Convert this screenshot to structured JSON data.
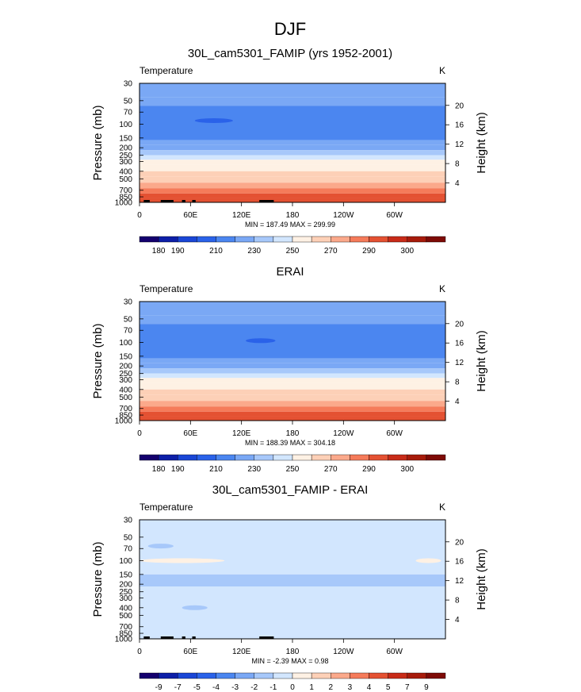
{
  "page_title": "DJF",
  "chart_data": [
    {
      "type": "heatmap",
      "title": "30L_cam5301_FAMIP (yrs 1952-2001)",
      "left_label": "Temperature",
      "units": "K",
      "ylabel": "Pressure (mb)",
      "ylabel_right": "Height (km)",
      "minmax": "MIN = 187.49  MAX = 299.99",
      "pressure_ticks": [
        "30",
        "50",
        "70",
        "100",
        "150",
        "200",
        "250",
        "300",
        "400",
        "500",
        "700",
        "850",
        "1000"
      ],
      "height_ticks": [
        "20",
        "16",
        "12",
        "8",
        "4"
      ],
      "lon_ticks": [
        "0",
        "60E",
        "120E",
        "180",
        "120W",
        "60W"
      ],
      "colorbar_labels": [
        "180",
        "190",
        "210",
        "230",
        "250",
        "270",
        "290",
        "300"
      ],
      "bands": [
        {
          "p_top": 30,
          "p_bot": 45,
          "value": 215
        },
        {
          "p_top": 45,
          "p_bot": 58,
          "value": 212
        },
        {
          "p_top": 58,
          "p_bot": 160,
          "value": 205
        },
        {
          "p_top": 160,
          "p_bot": 185,
          "value": 210
        },
        {
          "p_top": 185,
          "p_bot": 215,
          "value": 215
        },
        {
          "p_top": 215,
          "p_bot": 250,
          "value": 222
        },
        {
          "p_top": 250,
          "p_bot": 285,
          "value": 230
        },
        {
          "p_top": 285,
          "p_bot": 330,
          "value": 240
        },
        {
          "p_top": 330,
          "p_bot": 400,
          "value": 247
        },
        {
          "p_top": 400,
          "p_bot": 470,
          "value": 252
        },
        {
          "p_top": 470,
          "p_bot": 560,
          "value": 258
        },
        {
          "p_top": 560,
          "p_bot": 660,
          "value": 265
        },
        {
          "p_top": 660,
          "p_bot": 770,
          "value": 272
        },
        {
          "p_top": 770,
          "p_bot": 880,
          "value": 280
        },
        {
          "p_top": 880,
          "p_bot": 1000,
          "value": 288
        }
      ],
      "features": [
        {
          "lon_start": 65,
          "lon_end": 110,
          "p": 90,
          "value": 190
        }
      ],
      "topo": [
        [
          5,
          12
        ],
        [
          25,
          40
        ],
        [
          50,
          54
        ],
        [
          62,
          66
        ],
        [
          141,
          158
        ]
      ]
    },
    {
      "type": "heatmap",
      "title": "ERAI",
      "left_label": "Temperature",
      "units": "K",
      "ylabel": "Pressure (mb)",
      "ylabel_right": "Height (km)",
      "minmax": "MIN = 188.39  MAX = 304.18",
      "pressure_ticks": [
        "30",
        "50",
        "70",
        "100",
        "150",
        "200",
        "250",
        "300",
        "400",
        "500",
        "700",
        "850",
        "1000"
      ],
      "height_ticks": [
        "20",
        "16",
        "12",
        "8",
        "4"
      ],
      "lon_ticks": [
        "0",
        "60E",
        "120E",
        "180",
        "120W",
        "60W"
      ],
      "colorbar_labels": [
        "180",
        "190",
        "210",
        "230",
        "250",
        "270",
        "290",
        "300"
      ],
      "bands": [
        {
          "p_top": 30,
          "p_bot": 45,
          "value": 215
        },
        {
          "p_top": 45,
          "p_bot": 58,
          "value": 212
        },
        {
          "p_top": 58,
          "p_bot": 160,
          "value": 205
        },
        {
          "p_top": 160,
          "p_bot": 185,
          "value": 210
        },
        {
          "p_top": 185,
          "p_bot": 215,
          "value": 215
        },
        {
          "p_top": 215,
          "p_bot": 250,
          "value": 222
        },
        {
          "p_top": 250,
          "p_bot": 285,
          "value": 230
        },
        {
          "p_top": 285,
          "p_bot": 330,
          "value": 240
        },
        {
          "p_top": 330,
          "p_bot": 400,
          "value": 247
        },
        {
          "p_top": 400,
          "p_bot": 470,
          "value": 252
        },
        {
          "p_top": 470,
          "p_bot": 560,
          "value": 258
        },
        {
          "p_top": 560,
          "p_bot": 660,
          "value": 265
        },
        {
          "p_top": 660,
          "p_bot": 770,
          "value": 272
        },
        {
          "p_top": 770,
          "p_bot": 880,
          "value": 280
        },
        {
          "p_top": 880,
          "p_bot": 1000,
          "value": 288
        }
      ],
      "features": [
        {
          "lon_start": 125,
          "lon_end": 160,
          "p": 95,
          "value": 190
        }
      ],
      "topo": []
    },
    {
      "type": "heatmap",
      "title": "30L_cam5301_FAMIP - ERAI",
      "left_label": "Temperature",
      "units": "K",
      "ylabel": "Pressure (mb)",
      "ylabel_right": "Height (km)",
      "minmax": "MIN =  -2.39  MAX =   0.98",
      "pressure_ticks": [
        "30",
        "50",
        "70",
        "100",
        "150",
        "200",
        "250",
        "300",
        "400",
        "500",
        "700",
        "850",
        "1000"
      ],
      "height_ticks": [
        "20",
        "16",
        "12",
        "8",
        "4"
      ],
      "lon_ticks": [
        "0",
        "60E",
        "120E",
        "180",
        "120W",
        "60W"
      ],
      "colorbar_labels": [
        "-9",
        "-7",
        "-5",
        "-4",
        "-3",
        "-2",
        "-1",
        "0",
        "1",
        "2",
        "3",
        "4",
        "5",
        "7",
        "9"
      ],
      "bands": [
        {
          "p_top": 30,
          "p_bot": 150,
          "value": -0.5
        },
        {
          "p_top": 150,
          "p_bot": 215,
          "value": -1.5
        },
        {
          "p_top": 215,
          "p_bot": 1000,
          "value": -0.5
        }
      ],
      "features": [
        {
          "lon_start": 10,
          "lon_end": 40,
          "p": 65,
          "value": -1.5
        },
        {
          "lon_start": 0,
          "lon_end": 100,
          "p": 100,
          "value": 0.5
        },
        {
          "lon_start": 160,
          "lon_end": 200,
          "p": 100,
          "value": -0.5
        },
        {
          "lon_start": 325,
          "lon_end": 355,
          "p": 100,
          "value": 0.5
        },
        {
          "lon_start": 50,
          "lon_end": 80,
          "p": 400,
          "value": -1.5
        }
      ],
      "topo": [
        [
          5,
          12
        ],
        [
          25,
          40
        ],
        [
          50,
          54
        ],
        [
          62,
          66
        ],
        [
          141,
          158
        ]
      ]
    }
  ]
}
